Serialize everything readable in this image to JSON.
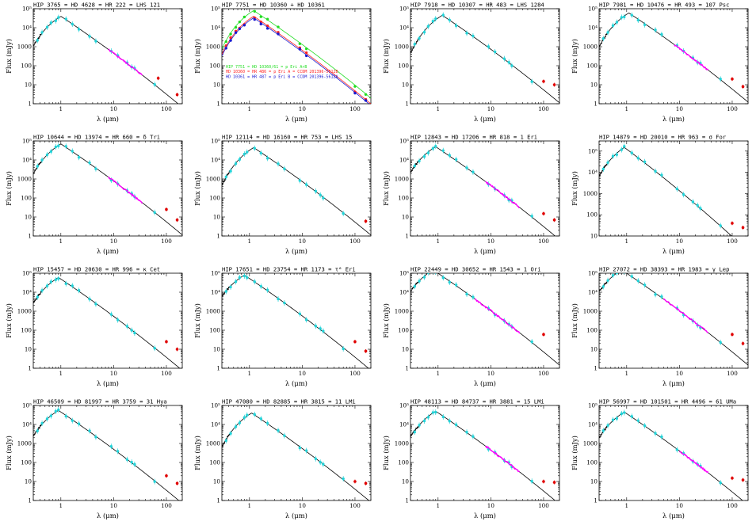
{
  "figure": {
    "xlabel": "λ (μm)",
    "ylabel": "Flux (mJy)",
    "xtick_labels": [
      "1",
      "10",
      "100"
    ],
    "ytick_labels": [
      "1",
      "10",
      "100",
      "1000",
      "10⁴",
      "10⁵"
    ]
  },
  "colors": {
    "model": "#000000",
    "photometry": "#22d3d8",
    "spectrum": "#ff00ff",
    "far_ir": "#e00000",
    "comp_a": "#22dd22",
    "comp_b": "#ff2020",
    "comp_c": "#1a1ad0"
  },
  "chart_data": [
    {
      "type": "scatter",
      "title": "HIP 3765 = HD 4628 = HR 222 = LHS 121",
      "xscale": "log",
      "yscale": "log",
      "xlim": [
        0.3,
        200
      ],
      "ylim": [
        1,
        100000
      ],
      "peak_um": 1.0,
      "peak_mjy": 40000,
      "spectrum_um": [
        8,
        35
      ],
      "far_ir": [
        [
          70,
          22
        ],
        [
          160,
          3
        ]
      ]
    },
    {
      "type": "scatter",
      "title": "HIP 7751 = HD 10360 + HD 10361",
      "xscale": "log",
      "yscale": "log",
      "xlim": [
        0.3,
        200
      ],
      "ylim": [
        1,
        100000
      ],
      "series": [
        {
          "name": "HIP 7751 = HD 10360/61 = p Eri A+B",
          "peak_um": 1.2,
          "peak_mjy": 80000
        },
        {
          "name": "HD 10360 = HR 486 = p Eri A = CCDM 201396-5612B",
          "peak_um": 1.2,
          "peak_mjy": 40000
        },
        {
          "name": "HD 10361 = HR 487 = p Eri B = CCDM 201396-5612A",
          "peak_um": 1.2,
          "peak_mjy": 33000
        }
      ]
    },
    {
      "type": "scatter",
      "title": "HIP 7918 = HD 10307 = HR 483 = LHS 1284",
      "xscale": "log",
      "yscale": "log",
      "xlim": [
        0.3,
        200
      ],
      "ylim": [
        1,
        100000
      ],
      "peak_um": 1.2,
      "peak_mjy": 45000,
      "far_ir": [
        [
          100,
          15
        ],
        [
          160,
          10
        ]
      ]
    },
    {
      "type": "scatter",
      "title": "HIP 7981 = HD 10476 = HR 493 = 107 Psc",
      "xscale": "log",
      "yscale": "log",
      "xlim": [
        0.3,
        200
      ],
      "ylim": [
        1,
        100000
      ],
      "peak_um": 1.1,
      "peak_mjy": 60000,
      "spectrum_um": [
        8,
        35
      ],
      "far_ir": [
        [
          100,
          20
        ],
        [
          160,
          8
        ]
      ]
    },
    {
      "type": "scatter",
      "title": "HIP 10644 = HD 13974 = HR 660 = δ Tri",
      "xscale": "log",
      "yscale": "log",
      "xlim": [
        0.3,
        200
      ],
      "ylim": [
        1,
        100000
      ],
      "peak_um": 1.0,
      "peak_mjy": 70000,
      "spectrum_um": [
        8,
        35
      ],
      "far_ir": [
        [
          100,
          25
        ],
        [
          160,
          7
        ]
      ]
    },
    {
      "type": "scatter",
      "title": "HIP 12114 = HD 16160 = HR 753 = LHS 15",
      "xscale": "log",
      "yscale": "log",
      "xlim": [
        0.3,
        200
      ],
      "ylim": [
        1,
        100000
      ],
      "peak_um": 1.2,
      "peak_mjy": 45000,
      "far_ir": [
        [
          160,
          6
        ]
      ]
    },
    {
      "type": "scatter",
      "title": "HIP 12843 = HD 17206 = HR 818 = 1 Eri",
      "xscale": "log",
      "yscale": "log",
      "xlim": [
        0.3,
        200
      ],
      "ylim": [
        1,
        100000
      ],
      "peak_um": 0.9,
      "peak_mjy": 50000,
      "spectrum_um": [
        8,
        35
      ],
      "far_ir": [
        [
          100,
          15
        ],
        [
          160,
          7
        ]
      ]
    },
    {
      "type": "scatter",
      "title": "HIP 14879 = HD 20010 = HR 963 = σ For",
      "xscale": "log",
      "yscale": "log",
      "xlim": [
        0.3,
        200
      ],
      "ylim": [
        10,
        300000
      ],
      "peak_um": 0.9,
      "peak_mjy": 150000,
      "far_ir": [
        [
          100,
          40
        ],
        [
          160,
          25
        ]
      ]
    },
    {
      "type": "scatter",
      "title": "HIP 15457 = HD 20630 = HR 996 = κ Cet",
      "xscale": "log",
      "yscale": "log",
      "xlim": [
        0.3,
        200
      ],
      "ylim": [
        1,
        100000
      ],
      "peak_um": 0.9,
      "peak_mjy": 60000,
      "far_ir": [
        [
          100,
          25
        ],
        [
          160,
          10
        ]
      ]
    },
    {
      "type": "scatter",
      "title": "HIP 17651 = HD 23754 = HR 1173 = τ⁶ Eri",
      "xscale": "log",
      "yscale": "log",
      "xlim": [
        0.3,
        200
      ],
      "ylim": [
        1,
        100000
      ],
      "peak_um": 0.8,
      "peak_mjy": 80000,
      "far_ir": [
        [
          100,
          25
        ],
        [
          160,
          8
        ]
      ]
    },
    {
      "type": "scatter",
      "title": "HIP 22449 = HD 30652 = HR 1543 = 1 Ori",
      "xscale": "log",
      "yscale": "log",
      "xlim": [
        0.3,
        200
      ],
      "ylim": [
        1,
        100000
      ],
      "peak_um": 0.8,
      "peak_mjy": 150000,
      "spectrum_um": [
        5,
        35
      ],
      "far_ir": [
        [
          100,
          60
        ]
      ]
    },
    {
      "type": "scatter",
      "title": "HIP 27072 = HD 38393 = HR 1983 = γ Lep",
      "xscale": "log",
      "yscale": "log",
      "xlim": [
        0.3,
        200
      ],
      "ylim": [
        1,
        100000
      ],
      "peak_um": 0.8,
      "peak_mjy": 150000,
      "spectrum_um": [
        5,
        35
      ],
      "far_ir": [
        [
          100,
          60
        ],
        [
          160,
          20
        ]
      ]
    },
    {
      "type": "scatter",
      "title": "HIP 46509 = HD 81997 = HR 3759 = 31 Hya",
      "xscale": "log",
      "yscale": "log",
      "xlim": [
        0.3,
        200
      ],
      "ylim": [
        1,
        100000
      ],
      "peak_um": 0.9,
      "peak_mjy": 55000,
      "far_ir": [
        [
          100,
          20
        ],
        [
          160,
          8
        ]
      ]
    },
    {
      "type": "scatter",
      "title": "HIP 47080 = HD 82885 = HR 3815 = 11 LMi",
      "xscale": "log",
      "yscale": "log",
      "xlim": [
        0.3,
        200
      ],
      "ylim": [
        1,
        100000
      ],
      "peak_um": 1.1,
      "peak_mjy": 40000,
      "far_ir": [
        [
          100,
          10
        ],
        [
          160,
          8
        ]
      ]
    },
    {
      "type": "scatter",
      "title": "HIP 48113 = HD 84737 = HR 3881 = 15 LMi",
      "xscale": "log",
      "yscale": "log",
      "xlim": [
        0.3,
        200
      ],
      "ylim": [
        1,
        100000
      ],
      "peak_um": 0.9,
      "peak_mjy": 50000,
      "spectrum_um": [
        8,
        35
      ],
      "far_ir": [
        [
          100,
          10
        ],
        [
          160,
          9
        ]
      ]
    },
    {
      "type": "scatter",
      "title": "HIP 56997 = HD 101501 = HR 4496 = 61 UMa",
      "xscale": "log",
      "yscale": "log",
      "xlim": [
        0.3,
        200
      ],
      "ylim": [
        1,
        100000
      ],
      "peak_um": 0.9,
      "peak_mjy": 45000,
      "spectrum_um": [
        10,
        35
      ],
      "far_ir": [
        [
          100,
          15
        ],
        [
          160,
          12
        ]
      ]
    }
  ]
}
